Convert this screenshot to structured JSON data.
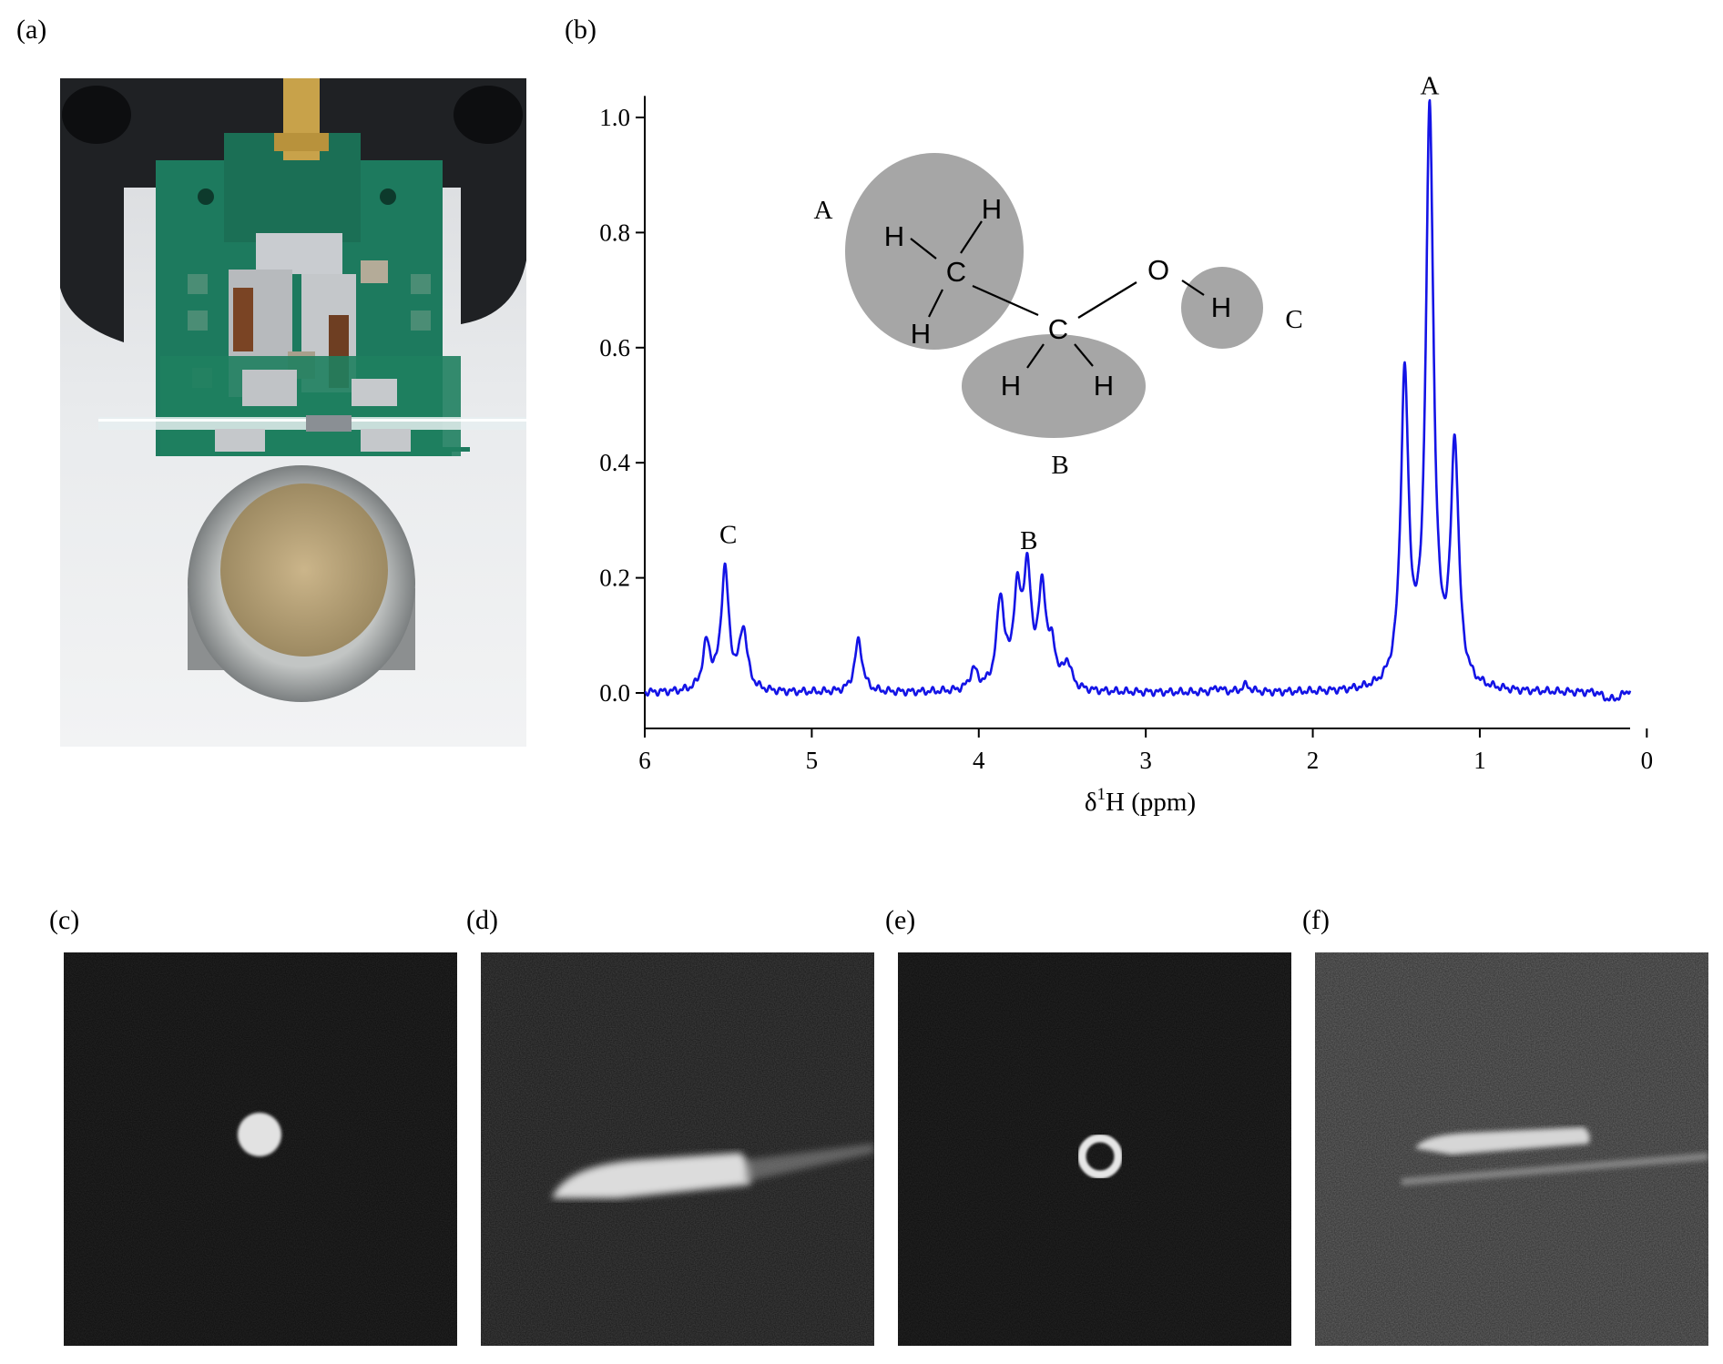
{
  "panel_labels": {
    "a": "(a)",
    "b": "(b)",
    "c": "(c)",
    "d": "(d)",
    "e": "(e)",
    "f": "(f)"
  },
  "molecule": {
    "group_labels": {
      "A": "A",
      "B": "B",
      "C": "C"
    },
    "atoms": {
      "c1": "C",
      "c2": "C",
      "o": "O",
      "h": "H"
    },
    "group_fill": "#a6a6a6"
  },
  "chart_data": {
    "type": "line",
    "xlabel_prefix": "δ",
    "xlabel_sup": "1",
    "xlabel_suffix": "H (ppm)",
    "ylabel": "",
    "xlim": [
      6,
      0.1
    ],
    "ylim": [
      -0.05,
      1.05
    ],
    "x_ticks": [
      6,
      5,
      4,
      3,
      2,
      1,
      0
    ],
    "x_tick_labels": [
      "6",
      "5",
      "4",
      "3",
      "2",
      "1",
      "0"
    ],
    "y_ticks": [
      0.0,
      0.2,
      0.4,
      0.6,
      0.8,
      1.0
    ],
    "y_tick_labels": [
      "0.0",
      "0.2",
      "0.4",
      "0.6",
      "0.8",
      "1.0"
    ],
    "x_reversed": true,
    "grid": false,
    "line_color": "#1414e6",
    "peak_labels": [
      {
        "text": "A",
        "x": 1.3,
        "y": 1.04
      },
      {
        "text": "B",
        "x": 3.7,
        "y": 0.25
      },
      {
        "text": "C",
        "x": 5.5,
        "y": 0.26
      }
    ],
    "series": [
      {
        "peaks": [
          {
            "x": 5.63,
            "h": 0.08
          },
          {
            "x": 5.52,
            "h": 0.21
          },
          {
            "x": 5.41,
            "h": 0.105
          },
          {
            "x": 4.72,
            "h": 0.09
          },
          {
            "x": 4.03,
            "h": 0.035
          },
          {
            "x": 3.87,
            "h": 0.155
          },
          {
            "x": 3.77,
            "h": 0.15
          },
          {
            "x": 3.71,
            "h": 0.19
          },
          {
            "x": 3.62,
            "h": 0.165
          },
          {
            "x": 3.56,
            "h": 0.06
          },
          {
            "x": 3.47,
            "h": 0.045
          },
          {
            "x": 2.57,
            "h": 0.008
          },
          {
            "x": 2.4,
            "h": 0.012
          },
          {
            "x": 1.45,
            "h": 0.535
          },
          {
            "x": 1.3,
            "h": 0.995
          },
          {
            "x": 1.15,
            "h": 0.415
          }
        ]
      }
    ]
  }
}
